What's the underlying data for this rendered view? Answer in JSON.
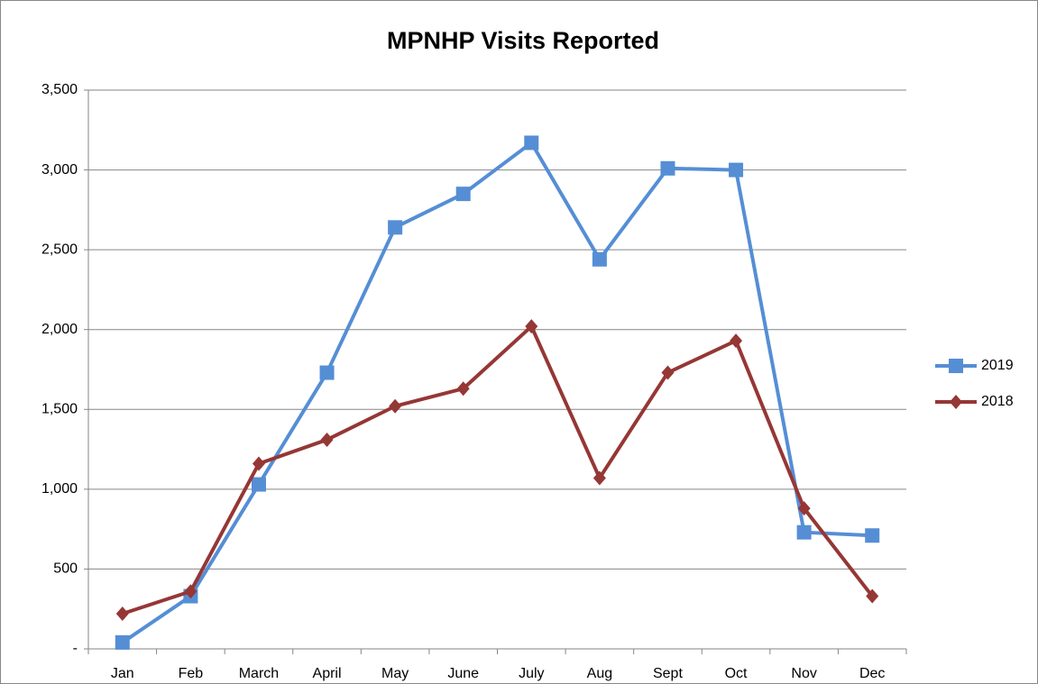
{
  "chart_data": {
    "type": "line",
    "title": "MPNHP Visits Reported",
    "categories": [
      "Jan",
      "Feb",
      "March",
      "April",
      "May",
      "June",
      "July",
      "Aug",
      "Sept",
      "Oct",
      "Nov",
      "Dec"
    ],
    "series": [
      {
        "name": "2019",
        "color": "#558ed5",
        "marker": "square",
        "values": [
          40,
          330,
          1030,
          1730,
          2640,
          2850,
          3170,
          2440,
          3010,
          3000,
          730,
          710
        ]
      },
      {
        "name": "2018",
        "color": "#953735",
        "marker": "diamond",
        "values": [
          220,
          360,
          1160,
          1310,
          1520,
          1630,
          2020,
          1070,
          1730,
          1930,
          880,
          330
        ]
      }
    ],
    "ylim": [
      0,
      3500
    ],
    "yticks": [
      {
        "value": 0,
        "label": "-"
      },
      500,
      {
        "value": 1000,
        "label": "1,000"
      },
      {
        "value": 1500,
        "label": "1,500"
      },
      {
        "value": 2000,
        "label": "2,000"
      },
      {
        "value": 2500,
        "label": "2,500"
      },
      {
        "value": 3000,
        "label": "3,000"
      },
      {
        "value": 3500,
        "label": "3,500"
      }
    ],
    "grid": true,
    "legend": "right"
  }
}
